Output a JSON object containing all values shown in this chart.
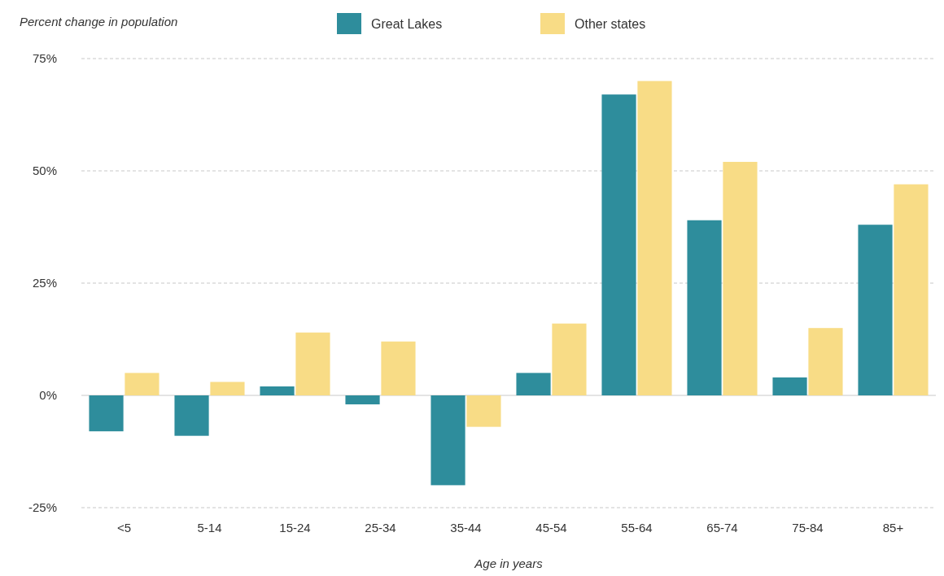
{
  "chart_data": {
    "type": "bar",
    "ylabel": "Percent change in population",
    "xlabel": "Age in years",
    "categories": [
      "<5",
      "5-14",
      "15-24",
      "25-34",
      "35-44",
      "45-54",
      "55-64",
      "65-74",
      "75-84",
      "85+"
    ],
    "series": [
      {
        "name": "Great Lakes",
        "color": "#2e8d9c",
        "values": [
          -8,
          -9,
          2,
          -2,
          -20,
          5,
          67,
          39,
          4,
          38
        ]
      },
      {
        "name": "Other states",
        "color": "#f8dc86",
        "values": [
          5,
          3,
          14,
          12,
          -7,
          16,
          70,
          52,
          15,
          47
        ]
      }
    ],
    "ylim": [
      -25,
      75
    ],
    "yticks": [
      {
        "value": -25,
        "label": "-25%"
      },
      {
        "value": 0,
        "label": "0%"
      },
      {
        "value": 25,
        "label": "25%"
      },
      {
        "value": 50,
        "label": "50%"
      },
      {
        "value": 75,
        "label": "75%"
      }
    ],
    "grid": "y",
    "legend": "top"
  }
}
